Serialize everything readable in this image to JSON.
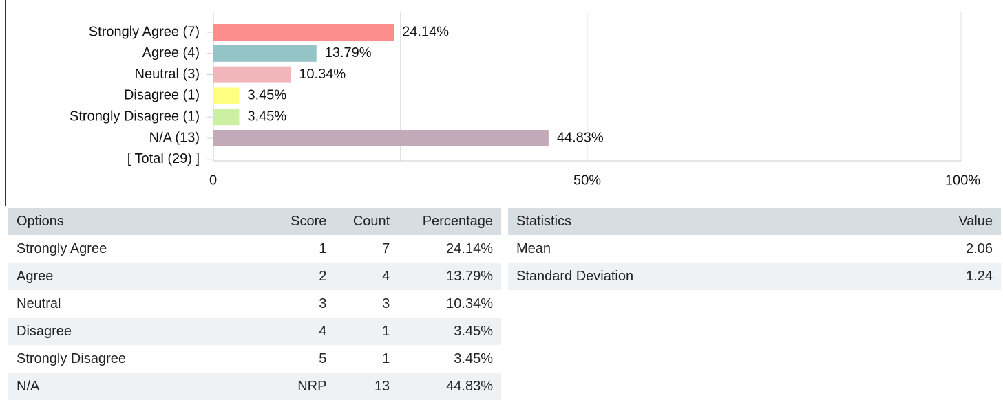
{
  "chart_data": {
    "type": "hbar",
    "categories": [
      "Strongly Agree (7)",
      "Agree (4)",
      "Neutral (3)",
      "Disagree (1)",
      "Strongly Disagree (1)",
      "N/A (13)",
      "[ Total (29) ]"
    ],
    "values": [
      24.14,
      13.79,
      10.34,
      3.45,
      3.45,
      44.83,
      null
    ],
    "value_labels": [
      "24.14%",
      "13.79%",
      "10.34%",
      "3.45%",
      "3.45%",
      "44.83%",
      null
    ],
    "colors": [
      "#fd8c8c",
      "#94c4c6",
      "#f0b6ba",
      "#ffff80",
      "#cdefa2",
      "#c3aab8",
      null
    ],
    "xlim": [
      0,
      100
    ],
    "xticks": [
      0,
      {
        "value": 50,
        "label": "50%"
      },
      {
        "value": 100,
        "label": "100%"
      }
    ],
    "xminor": [
      25,
      75
    ],
    "grid": true
  },
  "options_table": {
    "columns": [
      "Options",
      "Score",
      "Count",
      "Percentage"
    ],
    "rows": [
      [
        "Strongly Agree",
        "1",
        "7",
        "24.14%"
      ],
      [
        "Agree",
        "2",
        "4",
        "13.79%"
      ],
      [
        "Neutral",
        "3",
        "3",
        "10.34%"
      ],
      [
        "Disagree",
        "4",
        "1",
        "3.45%"
      ],
      [
        "Strongly Disagree",
        "5",
        "1",
        "3.45%"
      ],
      [
        "N/A",
        "NRP",
        "13",
        "44.83%"
      ]
    ]
  },
  "statistics_table": {
    "columns": [
      "Statistics",
      "Value"
    ],
    "rows": [
      [
        "Mean",
        "2.06"
      ],
      [
        "Standard Deviation",
        "1.24"
      ]
    ]
  }
}
